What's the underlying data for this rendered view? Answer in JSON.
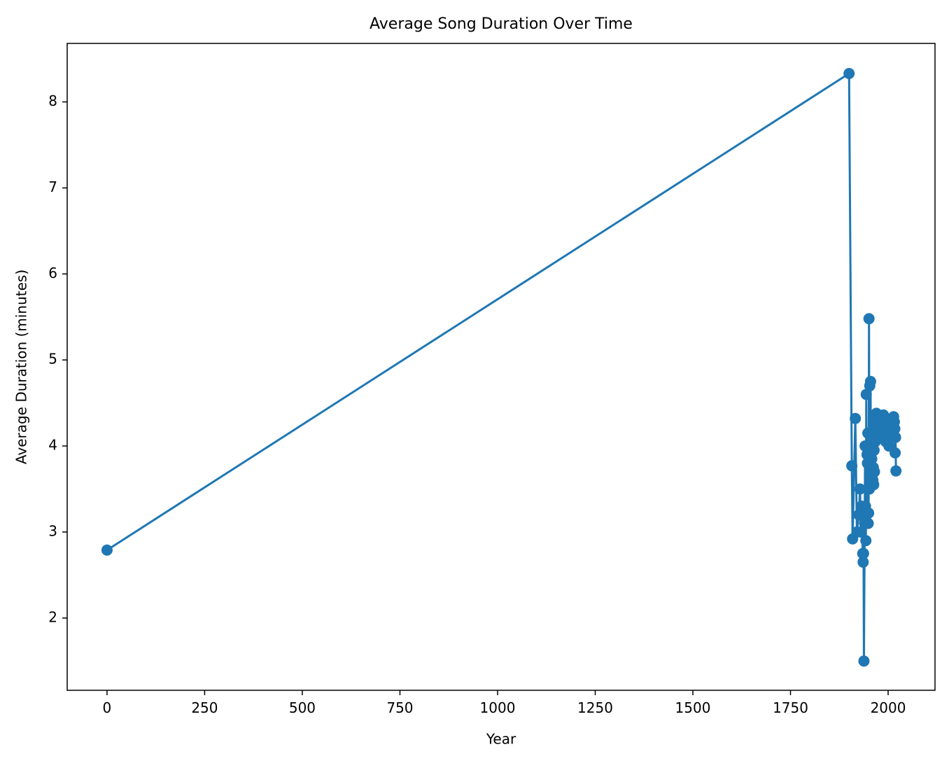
{
  "chart_data": {
    "type": "line",
    "title": "Average Song Duration Over Time",
    "x_label": "Year",
    "y_label": "Average Duration (minutes)",
    "xlim": [
      -102,
      2120
    ],
    "ylim": [
      1.16,
      8.68
    ],
    "xticks": [
      0,
      250,
      500,
      750,
      1000,
      1250,
      1500,
      1750,
      2000
    ],
    "yticks": [
      2,
      3,
      4,
      5,
      6,
      7,
      8
    ],
    "grid": false,
    "marker": true,
    "series": [
      {
        "name": "Average Duration",
        "color": "#1f77b4",
        "x": [
          0,
          1900,
          1907,
          1909,
          1916,
          1920,
          1925,
          1928,
          1930,
          1932,
          1935,
          1936,
          1937,
          1938,
          1940,
          1941,
          1942,
          1943,
          1944,
          1945,
          1946,
          1947,
          1948,
          1949,
          1950,
          1951,
          1952,
          1953,
          1954,
          1955,
          1956,
          1957,
          1958,
          1959,
          1960,
          1961,
          1962,
          1963,
          1964,
          1965,
          1966,
          1967,
          1968,
          1969,
          1970,
          1972,
          1974,
          1976,
          1978,
          1980,
          1982,
          1984,
          1986,
          1988,
          1990,
          1992,
          1994,
          1996,
          1998,
          2000,
          2002,
          2004,
          2006,
          2008,
          2010,
          2012,
          2014,
          2016,
          2017,
          2018,
          2019,
          2020
        ],
        "values": [
          2.79,
          8.33,
          3.77,
          2.92,
          4.32,
          3.0,
          3.2,
          3.5,
          3.0,
          3.3,
          2.75,
          2.65,
          2.75,
          1.5,
          3.1,
          4.0,
          3.3,
          2.9,
          4.6,
          3.2,
          3.9,
          3.8,
          4.15,
          3.1,
          3.22,
          5.48,
          3.5,
          4.7,
          3.6,
          4.75,
          3.7,
          3.55,
          3.85,
          3.65,
          4.0,
          3.6,
          3.75,
          3.55,
          3.95,
          3.7,
          4.2,
          4.05,
          4.3,
          4.1,
          4.38,
          4.2,
          4.35,
          4.15,
          4.3,
          4.1,
          4.25,
          4.32,
          4.2,
          4.36,
          4.15,
          4.3,
          4.05,
          4.25,
          4.1,
          4.3,
          4.0,
          4.22,
          4.15,
          4.3,
          4.1,
          4.25,
          4.34,
          4.28,
          4.2,
          3.92,
          4.1,
          3.71
        ]
      }
    ]
  }
}
